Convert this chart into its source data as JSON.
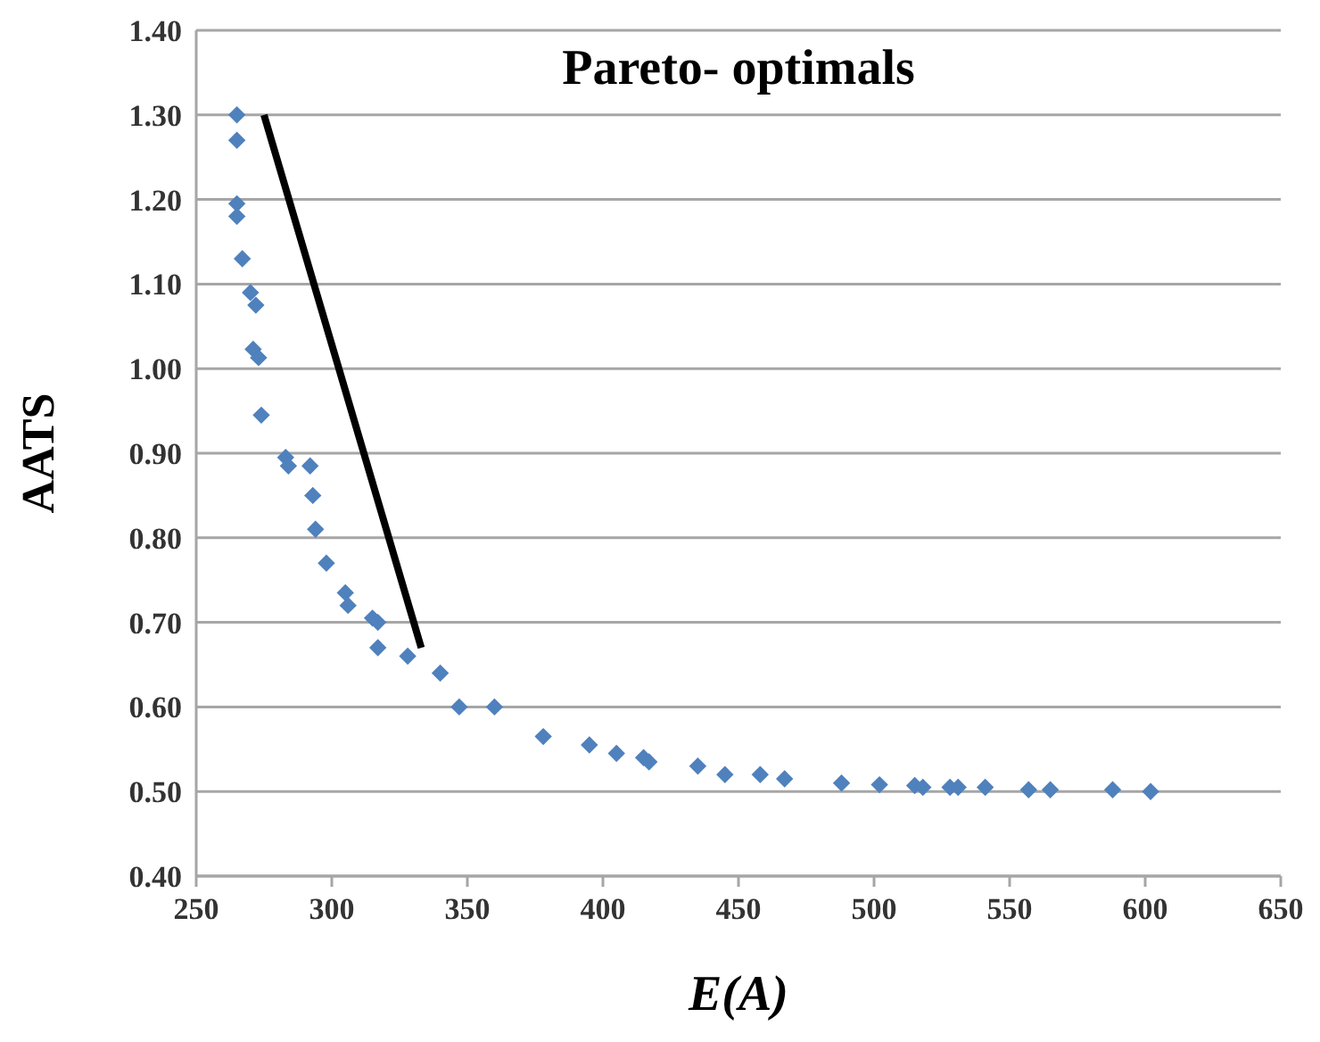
{
  "chart_data": {
    "type": "scatter",
    "title": "Pareto- optimals",
    "xlabel": "E(A)",
    "ylabel": "AATS",
    "xlim": [
      250,
      650
    ],
    "xticks": [
      250,
      300,
      350,
      400,
      450,
      500,
      550,
      600,
      650
    ],
    "ylim": [
      0.4,
      1.4
    ],
    "yticks": [
      {
        "value": 0.4,
        "label": "0.40"
      },
      {
        "value": 0.5,
        "label": "0.50"
      },
      {
        "value": 0.6,
        "label": "0.60"
      },
      {
        "value": 0.7,
        "label": "0.70"
      },
      {
        "value": 0.8,
        "label": "0.80"
      },
      {
        "value": 0.9,
        "label": "0.90"
      },
      {
        "value": 1.0,
        "label": "1.00"
      },
      {
        "value": 1.1,
        "label": "1.10"
      },
      {
        "value": 1.2,
        "label": "1.20"
      },
      {
        "value": 1.3,
        "label": "1.30"
      },
      {
        "value": 1.4,
        "label": "1.40"
      }
    ],
    "grid": "y",
    "series": [
      {
        "marker": "diamond",
        "color": "#4f81bd",
        "x": [
          265,
          265,
          265,
          265,
          267,
          270,
          272,
          271,
          273,
          274,
          283,
          284,
          292,
          293,
          294,
          298,
          305,
          306,
          315,
          317,
          317,
          328,
          340,
          347,
          360,
          378,
          395,
          405,
          415,
          417,
          435,
          445,
          458,
          467,
          488,
          502,
          515,
          518,
          528,
          531,
          541,
          557,
          565,
          588,
          602
        ],
        "values": [
          1.3,
          1.27,
          1.195,
          1.18,
          1.13,
          1.09,
          1.075,
          1.023,
          1.013,
          0.945,
          0.895,
          0.885,
          0.885,
          0.85,
          0.81,
          0.77,
          0.735,
          0.72,
          0.705,
          0.7,
          0.67,
          0.66,
          0.64,
          0.6,
          0.6,
          0.565,
          0.555,
          0.545,
          0.54,
          0.535,
          0.53,
          0.52,
          0.52,
          0.515,
          0.51,
          0.508,
          0.507,
          0.505,
          0.505,
          0.505,
          0.505,
          0.502,
          0.502,
          0.502,
          0.5
        ]
      },
      {
        "type": "line",
        "color": "#000000",
        "x": [
          275,
          333
        ],
        "values": [
          1.3,
          0.67
        ]
      }
    ]
  }
}
